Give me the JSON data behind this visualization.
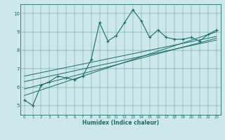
{
  "xlabel": "Humidex (Indice chaleur)",
  "bg_color": "#cce8e8",
  "line_color": "#1a6e6a",
  "xlim": [
    -0.5,
    23.5
  ],
  "ylim": [
    4.5,
    10.5
  ],
  "xticks": [
    0,
    1,
    2,
    3,
    4,
    5,
    6,
    7,
    8,
    9,
    10,
    11,
    12,
    13,
    14,
    15,
    16,
    17,
    18,
    19,
    20,
    21,
    22,
    23
  ],
  "yticks": [
    5,
    6,
    7,
    8,
    9,
    10
  ],
  "jagged_x": [
    0,
    1,
    2,
    3,
    4,
    5,
    6,
    7,
    8,
    9,
    10,
    11,
    12,
    13,
    14,
    15,
    16,
    17,
    18,
    19,
    20,
    21,
    22,
    23
  ],
  "jagged_y": [
    5.3,
    5.0,
    6.1,
    6.3,
    6.6,
    6.5,
    6.4,
    6.6,
    7.5,
    9.5,
    8.5,
    8.8,
    9.5,
    10.2,
    9.6,
    8.7,
    9.1,
    8.7,
    8.6,
    8.6,
    8.7,
    8.5,
    8.85,
    9.1
  ],
  "line1_x": [
    0,
    23
  ],
  "line1_y": [
    5.55,
    9.0
  ],
  "line2_x": [
    0,
    23
  ],
  "line2_y": [
    5.9,
    8.65
  ],
  "line3_x": [
    0,
    23
  ],
  "line3_y": [
    6.3,
    8.55
  ],
  "line4_x": [
    0,
    23
  ],
  "line4_y": [
    6.6,
    8.75
  ]
}
